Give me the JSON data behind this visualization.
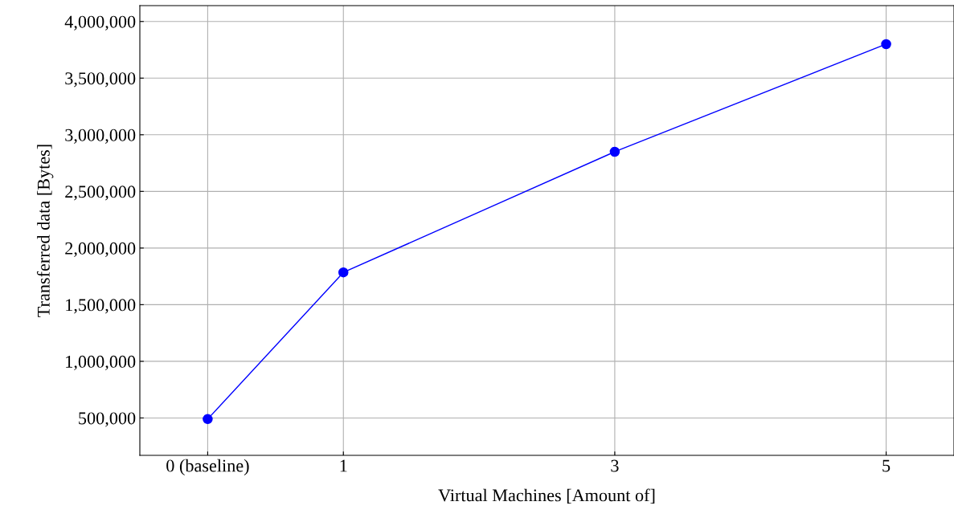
{
  "chart_data": {
    "type": "line",
    "xlabel": "Virtual Machines [Amount of]",
    "ylabel": "Transferred data [Bytes]",
    "x": [
      0,
      1,
      3,
      5
    ],
    "series": [
      {
        "color": "#0000ff",
        "values": [
          490000,
          1785000,
          2850000,
          3800000
        ]
      }
    ],
    "xlim": [
      -0.5,
      5.5
    ],
    "xticks": [
      {
        "value": 0,
        "label": "0 (baseline)"
      },
      1,
      3,
      5
    ],
    "ylim": [
      170000,
      4140000
    ],
    "yticks": [
      {
        "value": 500000,
        "label": "500,000"
      },
      {
        "value": 1000000,
        "label": "1,000,000"
      },
      {
        "value": 1500000,
        "label": "1,500,000"
      },
      {
        "value": 2000000,
        "label": "2,000,000"
      },
      {
        "value": 2500000,
        "label": "2,500,000"
      },
      {
        "value": 3000000,
        "label": "3,000,000"
      },
      {
        "value": 3500000,
        "label": "3,500,000"
      },
      {
        "value": 4000000,
        "label": "4,000,000"
      }
    ],
    "grid": true,
    "marker": "circle",
    "line_style": "solid",
    "legend": false
  }
}
